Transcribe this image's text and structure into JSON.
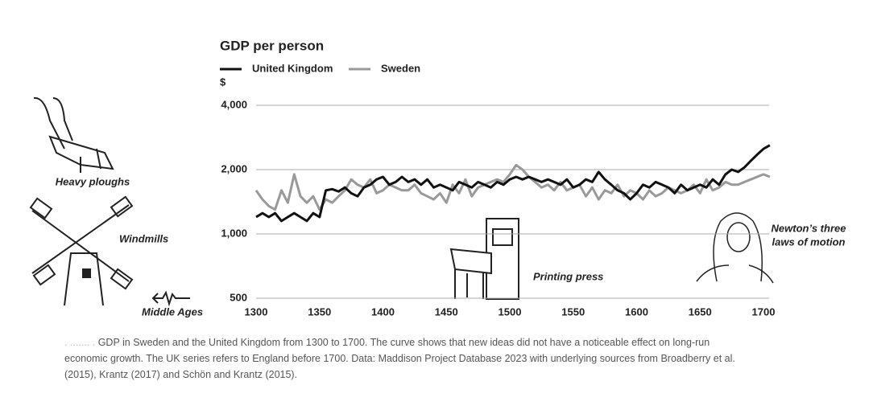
{
  "chart_data": {
    "type": "line",
    "title": "GDP per person",
    "y_label": "$",
    "x": [
      1300,
      1305,
      1310,
      1315,
      1320,
      1325,
      1330,
      1335,
      1340,
      1345,
      1350,
      1355,
      1360,
      1365,
      1370,
      1375,
      1380,
      1385,
      1390,
      1395,
      1400,
      1405,
      1410,
      1415,
      1420,
      1425,
      1430,
      1435,
      1440,
      1445,
      1450,
      1455,
      1460,
      1465,
      1470,
      1475,
      1480,
      1485,
      1490,
      1495,
      1500,
      1505,
      1510,
      1515,
      1520,
      1525,
      1530,
      1535,
      1540,
      1545,
      1550,
      1555,
      1560,
      1565,
      1570,
      1575,
      1580,
      1585,
      1590,
      1595,
      1600,
      1605,
      1610,
      1615,
      1620,
      1625,
      1630,
      1635,
      1640,
      1645,
      1650,
      1655,
      1660,
      1665,
      1670,
      1675,
      1680,
      1685,
      1690,
      1695,
      1700,
      1705
    ],
    "series": [
      {
        "name": "United Kingdom",
        "color": "#111111",
        "values": [
          1200,
          1250,
          1200,
          1250,
          1150,
          1200,
          1250,
          1200,
          1150,
          1250,
          1200,
          1600,
          1620,
          1580,
          1650,
          1550,
          1500,
          1650,
          1700,
          1800,
          1850,
          1700,
          1750,
          1850,
          1750,
          1800,
          1700,
          1800,
          1650,
          1700,
          1650,
          1600,
          1750,
          1700,
          1650,
          1750,
          1700,
          1650,
          1750,
          1700,
          1800,
          1850,
          1800,
          1850,
          1800,
          1750,
          1800,
          1750,
          1700,
          1800,
          1650,
          1700,
          1800,
          1750,
          1950,
          1800,
          1700,
          1600,
          1550,
          1450,
          1550,
          1700,
          1650,
          1750,
          1700,
          1650,
          1550,
          1700,
          1600,
          1650,
          1700,
          1650,
          1800,
          1700,
          1900,
          2000,
          1950,
          2050,
          2200,
          2350,
          2500,
          2600
        ]
      },
      {
        "name": "Sweden",
        "color": "#999999",
        "values": [
          1600,
          1450,
          1350,
          1300,
          1600,
          1400,
          1900,
          1500,
          1400,
          1500,
          1300,
          1450,
          1400,
          1500,
          1600,
          1800,
          1700,
          1650,
          1800,
          1550,
          1600,
          1700,
          1650,
          1600,
          1600,
          1700,
          1550,
          1500,
          1450,
          1550,
          1400,
          1700,
          1550,
          1800,
          1500,
          1650,
          1700,
          1750,
          1800,
          1750,
          1900,
          2100,
          2000,
          1850,
          1750,
          1650,
          1700,
          1600,
          1750,
          1600,
          1650,
          1700,
          1500,
          1650,
          1450,
          1600,
          1550,
          1700,
          1500,
          1600,
          1550,
          1450,
          1600,
          1500,
          1550,
          1650,
          1600,
          1550,
          1600,
          1700,
          1550,
          1800,
          1600,
          1650,
          1750,
          1700,
          1700,
          1750,
          1800,
          1850,
          1900,
          1850
        ]
      }
    ],
    "xlim": [
      1300,
      1710
    ],
    "xticks": [
      1300,
      1350,
      1400,
      1450,
      1500,
      1550,
      1600,
      1650,
      1700
    ],
    "ylim": [
      500,
      4000
    ],
    "log_y": true,
    "yticks": [
      500,
      {
        "value": 1000,
        "label": "1,000"
      },
      {
        "value": 2000,
        "label": "2,000"
      },
      {
        "value": 4000,
        "label": "4,000"
      }
    ],
    "grid": true,
    "annotations": {
      "ploughs": "Heavy ploughs",
      "windmills": "Windmills",
      "middle_ages": "Middle Ages",
      "press": "Printing press",
      "newton": [
        "Newton’s three",
        "laws of motion"
      ]
    },
    "caption": "GDP in Sweden and the United Kingdom from 1300 to 1700. The curve shows that new ideas did not have a noticeable effect on long-run economic growth. The UK series refers to England before 1700. Data: Maddison Project Database 2023 with underlying sources from Broadberry et al. (2015), Krantz (2017) and Schön and Krantz (2015)."
  }
}
